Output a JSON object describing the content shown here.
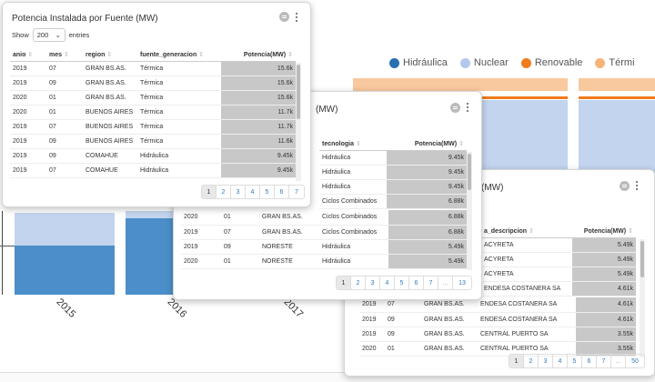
{
  "legend": [
    {
      "label": "Hidráulica",
      "color": "#2a6fb0"
    },
    {
      "label": "Nuclear",
      "color": "#b3c8ea"
    },
    {
      "label": "Renovable",
      "color": "#f07b1d"
    },
    {
      "label": "Térmi",
      "color": "#f8b37a"
    }
  ],
  "years": [
    "2015",
    "2016",
    "2017"
  ],
  "card1": {
    "title": "Potencia Instalada por Fuente (MW)",
    "show_label": "Show",
    "show_value": "200",
    "entries_label": "entries",
    "columns": [
      "anio",
      "mes",
      "region",
      "fuente_generacion",
      "Potencia(MW)"
    ],
    "rows": [
      [
        "2019",
        "07",
        "GRAN BS.AS.",
        "Térmica",
        "15.6k"
      ],
      [
        "2019",
        "09",
        "GRAN BS.AS.",
        "Térmica",
        "15.6k"
      ],
      [
        "2020",
        "01",
        "GRAN BS.AS.",
        "Térmica",
        "15.6k"
      ],
      [
        "2020",
        "01",
        "BUENOS AIRES",
        "Térmica",
        "11.7k"
      ],
      [
        "2019",
        "07",
        "BUENOS AIRES",
        "Térmica",
        "11.7k"
      ],
      [
        "2019",
        "09",
        "BUENOS AIRES",
        "Térmica",
        "11.6k"
      ],
      [
        "2019",
        "09",
        "COMAHUE",
        "Hidráulica",
        "9.45k"
      ],
      [
        "2019",
        "07",
        "COMAHUE",
        "Hidráulica",
        "9.45k"
      ]
    ],
    "pages": [
      "1",
      "2",
      "3",
      "4",
      "5",
      "6",
      "7"
    ]
  },
  "card2": {
    "title": "(MW)",
    "columns": [
      "tecnologia",
      "Potencia(MW)"
    ],
    "rows_top": [
      [
        "Hidráulica",
        "9.45k"
      ],
      [
        "Hidráulica",
        "9.45k"
      ],
      [
        "Hidráulica",
        "9.45k"
      ],
      [
        "Ciclos Combinados",
        "6.88k"
      ]
    ],
    "rows": [
      [
        "2020",
        "01",
        "GRAN BS.AS.",
        "Ciclos Combinados",
        "6.88k"
      ],
      [
        "2019",
        "07",
        "GRAN BS.AS.",
        "Ciclos Combinados",
        "6.88k"
      ],
      [
        "2019",
        "09",
        "NORESTE",
        "Hidráulica",
        "5.49k"
      ],
      [
        "2020",
        "01",
        "NORESTE",
        "Hidráulica",
        "5.49k"
      ]
    ],
    "pages": [
      "1",
      "2",
      "3",
      "4",
      "5",
      "6",
      "7",
      "...",
      "13"
    ]
  },
  "card3": {
    "title": "(MW)",
    "columns": [
      "a_descripcion",
      "Potencia(MW)"
    ],
    "rows_top": [
      [
        "ACYRETA",
        "5.49k"
      ],
      [
        "ACYRETA",
        "5.49k"
      ],
      [
        "ACYRETA",
        "5.49k"
      ],
      [
        "ENDESA COSTANERA SA",
        "4.61k"
      ]
    ],
    "rows": [
      [
        "2019",
        "07",
        "GRAN BS.AS.",
        "ENDESA COSTANERA SA",
        "4.61k"
      ],
      [
        "2019",
        "09",
        "GRAN BS.AS.",
        "ENDESA COSTANERA SA",
        "4.61k"
      ],
      [
        "2019",
        "09",
        "GRAN BS.AS.",
        "CENTRAL PUERTO SA",
        "3.55k"
      ],
      [
        "2020",
        "01",
        "GRAN BS.AS.",
        "CENTRAL PUERTO SA",
        "3.55k"
      ]
    ],
    "pages": [
      "1",
      "2",
      "3",
      "4",
      "5",
      "6",
      "7",
      "...",
      "50"
    ]
  }
}
